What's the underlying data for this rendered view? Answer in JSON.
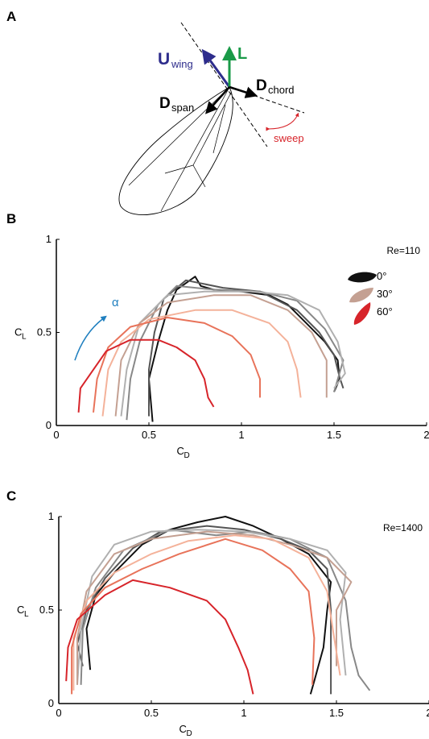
{
  "diagram": {
    "panel": "A",
    "labels": {
      "u": "U",
      "u_sub": "wing",
      "l": "L",
      "dchord": "D",
      "dchord_sub": "chord",
      "dspan": "D",
      "dspan_sub": "span",
      "sweep": "sweep"
    }
  },
  "chart_data": [
    {
      "type": "line",
      "panel": "B",
      "annotation": "Re=110",
      "alpha_label": "α",
      "xlabel": "C",
      "xlabel_sub": "D",
      "ylabel": "C",
      "ylabel_sub": "L",
      "xlim": [
        0,
        2
      ],
      "ylim": [
        0,
        1
      ],
      "xticks": [
        0,
        0.5,
        1,
        1.5,
        2
      ],
      "yticks": [
        0,
        0.5,
        1
      ],
      "legend": [
        {
          "label": "0°",
          "color": "#111111"
        },
        {
          "label": "30°",
          "color": "#c4a092"
        },
        {
          "label": "60°",
          "color": "#d7242a"
        }
      ],
      "series": [
        {
          "color": "#111111",
          "x": [
            0.52,
            0.5,
            0.55,
            0.6,
            0.65,
            0.75,
            0.78,
            0.85,
            1.0,
            1.15,
            1.25,
            1.35,
            1.45,
            1.52,
            1.53,
            1.5
          ],
          "values": [
            0.02,
            0.25,
            0.45,
            0.62,
            0.73,
            0.8,
            0.75,
            0.73,
            0.72,
            0.7,
            0.65,
            0.55,
            0.45,
            0.35,
            0.25,
            0.18
          ]
        },
        {
          "color": "#555555",
          "x": [
            0.5,
            0.5,
            0.53,
            0.58,
            0.7,
            0.9,
            1.1,
            1.3,
            1.42,
            1.5,
            1.53,
            1.55
          ],
          "values": [
            0.05,
            0.3,
            0.5,
            0.68,
            0.78,
            0.74,
            0.72,
            0.62,
            0.5,
            0.38,
            0.26,
            0.2
          ]
        },
        {
          "color": "#888888",
          "x": [
            0.38,
            0.4,
            0.45,
            0.55,
            0.65,
            0.85,
            1.1,
            1.3,
            1.45,
            1.55,
            1.5
          ],
          "values": [
            0.03,
            0.25,
            0.45,
            0.65,
            0.75,
            0.73,
            0.72,
            0.67,
            0.52,
            0.35,
            0.18
          ]
        },
        {
          "color": "#b0b0b0",
          "x": [
            0.35,
            0.38,
            0.45,
            0.6,
            0.8,
            1.05,
            1.25,
            1.42,
            1.52,
            1.56,
            1.5
          ],
          "values": [
            0.05,
            0.3,
            0.55,
            0.7,
            0.72,
            0.72,
            0.7,
            0.62,
            0.45,
            0.28,
            0.2
          ]
        },
        {
          "color": "#c4a092",
          "x": [
            0.32,
            0.35,
            0.45,
            0.6,
            0.85,
            1.05,
            1.25,
            1.38,
            1.46,
            1.46
          ],
          "values": [
            0.05,
            0.35,
            0.55,
            0.66,
            0.7,
            0.7,
            0.62,
            0.5,
            0.35,
            0.15
          ]
        },
        {
          "color": "#f4b29a",
          "x": [
            0.25,
            0.28,
            0.35,
            0.5,
            0.75,
            0.95,
            1.15,
            1.25,
            1.3,
            1.32
          ],
          "values": [
            0.05,
            0.3,
            0.45,
            0.57,
            0.62,
            0.62,
            0.55,
            0.45,
            0.3,
            0.15
          ]
        },
        {
          "color": "#e8735a",
          "x": [
            0.2,
            0.22,
            0.28,
            0.4,
            0.6,
            0.8,
            0.95,
            1.05,
            1.1,
            1.1
          ],
          "values": [
            0.07,
            0.25,
            0.42,
            0.53,
            0.58,
            0.55,
            0.48,
            0.38,
            0.25,
            0.15
          ]
        },
        {
          "color": "#d7242a",
          "x": [
            0.12,
            0.13,
            0.2,
            0.27,
            0.4,
            0.55,
            0.65,
            0.75,
            0.8,
            0.82,
            0.85
          ],
          "values": [
            0.07,
            0.2,
            0.3,
            0.4,
            0.46,
            0.46,
            0.42,
            0.35,
            0.25,
            0.15,
            0.1
          ]
        }
      ]
    },
    {
      "type": "line",
      "panel": "C",
      "annotation": "Re=1400",
      "xlabel": "C",
      "xlabel_sub": "D",
      "ylabel": "C",
      "ylabel_sub": "L",
      "xlim": [
        0,
        2
      ],
      "ylim": [
        0,
        1
      ],
      "xticks": [
        0,
        0.5,
        1,
        1.5,
        2
      ],
      "yticks": [
        0,
        0.5,
        1
      ],
      "series": [
        {
          "color": "#111111",
          "x": [
            0.17,
            0.15,
            0.2,
            0.3,
            0.45,
            0.6,
            0.75,
            0.9,
            1.05,
            1.2,
            1.35,
            1.47,
            1.45,
            1.43,
            1.38,
            1.36
          ],
          "values": [
            0.18,
            0.4,
            0.58,
            0.7,
            0.85,
            0.93,
            0.97,
            1.0,
            0.95,
            0.88,
            0.8,
            0.65,
            0.5,
            0.3,
            0.12,
            0.05
          ]
        },
        {
          "color": "#555555",
          "x": [
            0.13,
            0.1,
            0.15,
            0.25,
            0.4,
            0.55,
            0.8,
            1.0,
            1.2,
            1.35,
            1.45,
            1.47,
            1.47,
            1.47
          ],
          "values": [
            0.2,
            0.32,
            0.5,
            0.67,
            0.83,
            0.92,
            0.95,
            0.93,
            0.88,
            0.82,
            0.72,
            0.5,
            0.2,
            0.05
          ]
        },
        {
          "color": "#888888",
          "x": [
            0.12,
            0.13,
            0.2,
            0.35,
            0.6,
            0.85,
            1.05,
            1.25,
            1.45,
            1.55,
            1.58,
            1.62,
            1.68
          ],
          "values": [
            0.1,
            0.4,
            0.62,
            0.82,
            0.93,
            0.9,
            0.92,
            0.88,
            0.78,
            0.55,
            0.3,
            0.15,
            0.07
          ]
        },
        {
          "color": "#b0b0b0",
          "x": [
            0.1,
            0.12,
            0.18,
            0.3,
            0.5,
            0.75,
            1.0,
            1.25,
            1.45,
            1.55,
            1.52,
            1.55
          ],
          "values": [
            0.1,
            0.4,
            0.68,
            0.85,
            0.92,
            0.93,
            0.92,
            0.88,
            0.82,
            0.7,
            0.45,
            0.15
          ]
        },
        {
          "color": "#c4a092",
          "x": [
            0.1,
            0.1,
            0.15,
            0.3,
            0.5,
            0.8,
            1.05,
            1.25,
            1.45,
            1.58,
            1.5,
            1.5
          ],
          "values": [
            0.1,
            0.35,
            0.6,
            0.8,
            0.88,
            0.92,
            0.9,
            0.85,
            0.78,
            0.65,
            0.5,
            0.2
          ]
        },
        {
          "color": "#f4b29a",
          "x": [
            0.08,
            0.08,
            0.15,
            0.3,
            0.5,
            0.7,
            0.95,
            1.15,
            1.35,
            1.45,
            1.48,
            1.52
          ],
          "values": [
            0.07,
            0.35,
            0.55,
            0.7,
            0.8,
            0.87,
            0.9,
            0.88,
            0.78,
            0.6,
            0.4,
            0.15
          ]
        },
        {
          "color": "#e8735a",
          "x": [
            0.07,
            0.07,
            0.12,
            0.25,
            0.45,
            0.65,
            0.9,
            1.1,
            1.25,
            1.35,
            1.38,
            1.37
          ],
          "values": [
            0.05,
            0.3,
            0.48,
            0.62,
            0.72,
            0.8,
            0.88,
            0.82,
            0.72,
            0.6,
            0.35,
            0.1
          ]
        },
        {
          "color": "#d7242a",
          "x": [
            0.04,
            0.05,
            0.1,
            0.25,
            0.4,
            0.6,
            0.8,
            0.9,
            0.97,
            1.02,
            1.05
          ],
          "values": [
            0.12,
            0.3,
            0.45,
            0.58,
            0.66,
            0.62,
            0.55,
            0.45,
            0.3,
            0.18,
            0.05
          ]
        }
      ]
    }
  ]
}
